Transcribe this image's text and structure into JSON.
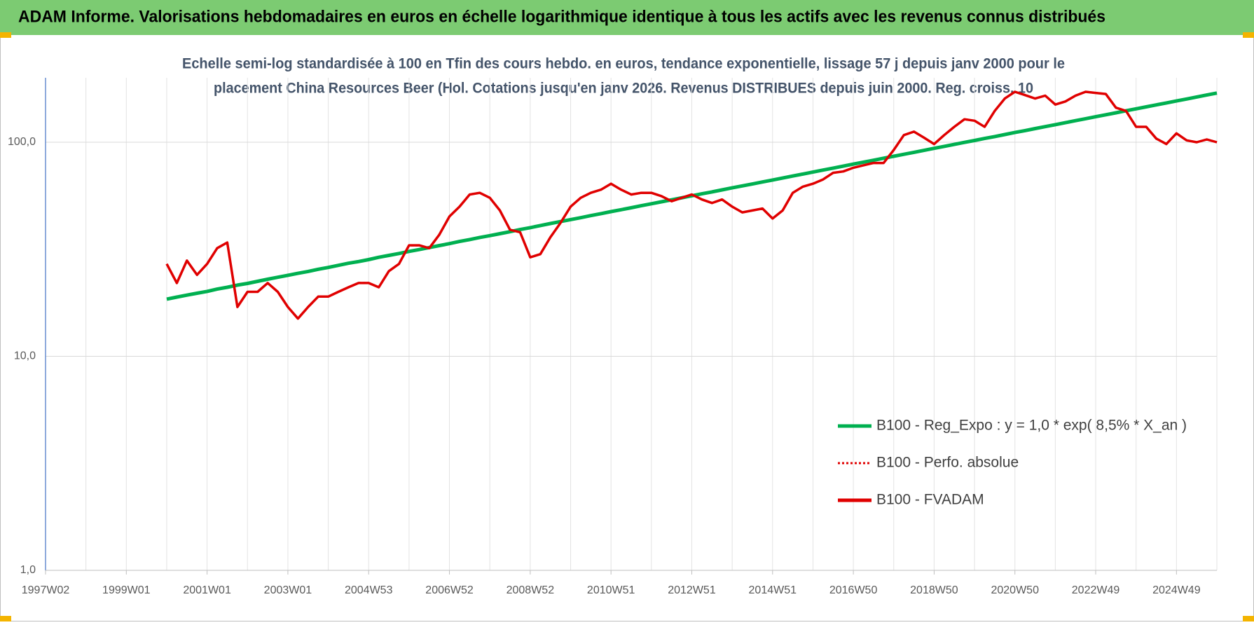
{
  "header": {
    "title": "ADAM Informe. Valorisations hebdomadaires en euros en échelle logarithmique identique à tous les actifs avec les revenus connus distribués"
  },
  "chart_data": {
    "type": "line",
    "subtitle": [
      "Echelle semi-log standardisée à 100 en Tfin des cours hebdo. en euros, tendance exponentielle, lissage 57 j depuis janv 2000 pour le",
      "placement China Resources Beer (Hol. Cotations jusqu'en janv 2026. Revenus DISTRIBUES depuis juin 2000. Reg. croiss. 10"
    ],
    "log_scale": true,
    "grid": true,
    "legend": "lower right",
    "ylim": [
      1,
      200
    ],
    "yticks": [
      {
        "value": 1,
        "label": "1,0"
      },
      {
        "value": 10,
        "label": "10,0"
      },
      {
        "value": 100,
        "label": "100,0"
      }
    ],
    "categories": [
      "1997W02",
      null,
      null,
      null,
      null,
      null,
      null,
      null,
      "1999W01",
      null,
      null,
      null,
      null,
      null,
      null,
      null,
      "2001W01",
      null,
      null,
      null,
      null,
      null,
      null,
      null,
      "2003W01",
      null,
      null,
      null,
      null,
      null,
      null,
      null,
      "2004W53",
      null,
      null,
      null,
      null,
      null,
      null,
      null,
      "2006W52",
      null,
      null,
      null,
      null,
      null,
      null,
      null,
      "2008W52",
      null,
      null,
      null,
      null,
      null,
      null,
      null,
      "2010W51",
      null,
      null,
      null,
      null,
      null,
      null,
      null,
      "2012W51",
      null,
      null,
      null,
      null,
      null,
      null,
      null,
      "2014W51",
      null,
      null,
      null,
      null,
      null,
      null,
      null,
      "2016W50",
      null,
      null,
      null,
      null,
      null,
      null,
      null,
      "2018W50",
      null,
      null,
      null,
      null,
      null,
      null,
      null,
      "2020W50",
      null,
      null,
      null,
      null,
      null,
      null,
      null,
      "2022W49",
      null,
      null,
      null,
      null,
      null,
      null,
      null,
      "2024W49",
      null,
      null,
      null,
      null
    ],
    "series": [
      {
        "name": "B100 - Reg_Expo : y = 1,0 * exp( 8,5% *  X_an )",
        "color": "#00b050",
        "dash": "solid",
        "values": [
          null,
          null,
          null,
          null,
          null,
          null,
          null,
          null,
          null,
          null,
          null,
          null,
          18.5,
          18.9,
          19.3,
          19.7,
          20.1,
          20.6,
          21.0,
          21.5,
          21.9,
          22.4,
          22.9,
          23.4,
          23.9,
          24.4,
          24.9,
          25.5,
          26.0,
          26.6,
          27.2,
          27.7,
          28.3,
          29.0,
          29.6,
          30.2,
          30.9,
          31.5,
          32.2,
          32.9,
          33.6,
          34.4,
          35.1,
          35.9,
          36.6,
          37.4,
          38.2,
          39.1,
          39.9,
          40.8,
          41.7,
          42.6,
          43.5,
          44.4,
          45.4,
          46.4,
          47.4,
          48.4,
          49.4,
          50.5,
          51.6,
          52.7,
          53.8,
          55.0,
          56.2,
          57.4,
          58.6,
          59.9,
          61.2,
          62.5,
          63.8,
          65.2,
          66.6,
          68.0,
          69.5,
          71.0,
          72.5,
          74.1,
          75.7,
          77.3,
          79.0,
          80.7,
          82.4,
          84.2,
          86.0,
          87.8,
          89.7,
          91.6,
          93.6,
          95.6,
          97.7,
          99.8,
          101.9,
          104.1,
          106.3,
          108.6,
          111.0,
          113.3,
          115.8,
          118.3,
          120.8,
          123.4,
          126.1,
          128.8,
          131.5,
          134.3,
          137.2,
          140.2,
          143.2,
          146.3,
          149.4,
          152.6,
          155.9,
          159.2,
          162.7,
          166.2,
          169.7
        ]
      },
      {
        "name": "B100 - Perfo. absolue",
        "color": "#e00000",
        "dash": "dotted",
        "values": [
          null,
          null,
          null,
          null,
          null,
          null,
          null,
          null,
          null,
          null,
          null,
          null,
          27,
          22,
          28,
          24,
          27,
          32,
          34,
          17,
          20,
          20,
          22,
          20,
          17,
          15,
          17,
          19,
          19,
          20,
          21,
          22,
          22,
          21,
          25,
          27,
          33,
          33,
          32,
          37,
          45,
          50,
          57,
          58,
          55,
          48,
          39,
          38,
          29,
          30,
          36,
          42,
          50,
          55,
          58,
          60,
          64,
          60,
          57,
          58,
          58,
          56,
          53,
          55,
          57,
          54,
          52,
          54,
          50,
          47,
          48,
          49,
          44,
          48,
          58,
          62,
          64,
          67,
          72,
          73,
          76,
          78,
          80,
          80,
          92,
          108,
          112,
          105,
          98,
          108,
          118,
          128,
          126,
          118,
          140,
          160,
          172,
          166,
          160,
          165,
          150,
          155,
          165,
          172,
          170,
          168,
          145,
          140,
          118,
          118,
          104,
          98,
          110,
          102,
          100,
          103,
          100
        ]
      },
      {
        "name": "B100 - FVADAM",
        "color": "#e00000",
        "dash": "solid",
        "values": [
          null,
          null,
          null,
          null,
          null,
          null,
          null,
          null,
          null,
          null,
          null,
          null,
          27,
          22,
          28,
          24,
          27,
          32,
          34,
          17,
          20,
          20,
          22,
          20,
          17,
          15,
          17,
          19,
          19,
          20,
          21,
          22,
          22,
          21,
          25,
          27,
          33,
          33,
          32,
          37,
          45,
          50,
          57,
          58,
          55,
          48,
          39,
          38,
          29,
          30,
          36,
          42,
          50,
          55,
          58,
          60,
          64,
          60,
          57,
          58,
          58,
          56,
          53,
          55,
          57,
          54,
          52,
          54,
          50,
          47,
          48,
          49,
          44,
          48,
          58,
          62,
          64,
          67,
          72,
          73,
          76,
          78,
          80,
          80,
          92,
          108,
          112,
          105,
          98,
          108,
          118,
          128,
          126,
          118,
          140,
          160,
          172,
          166,
          160,
          165,
          150,
          155,
          165,
          172,
          170,
          168,
          145,
          140,
          118,
          118,
          104,
          98,
          110,
          102,
          100,
          103,
          100
        ]
      }
    ]
  }
}
